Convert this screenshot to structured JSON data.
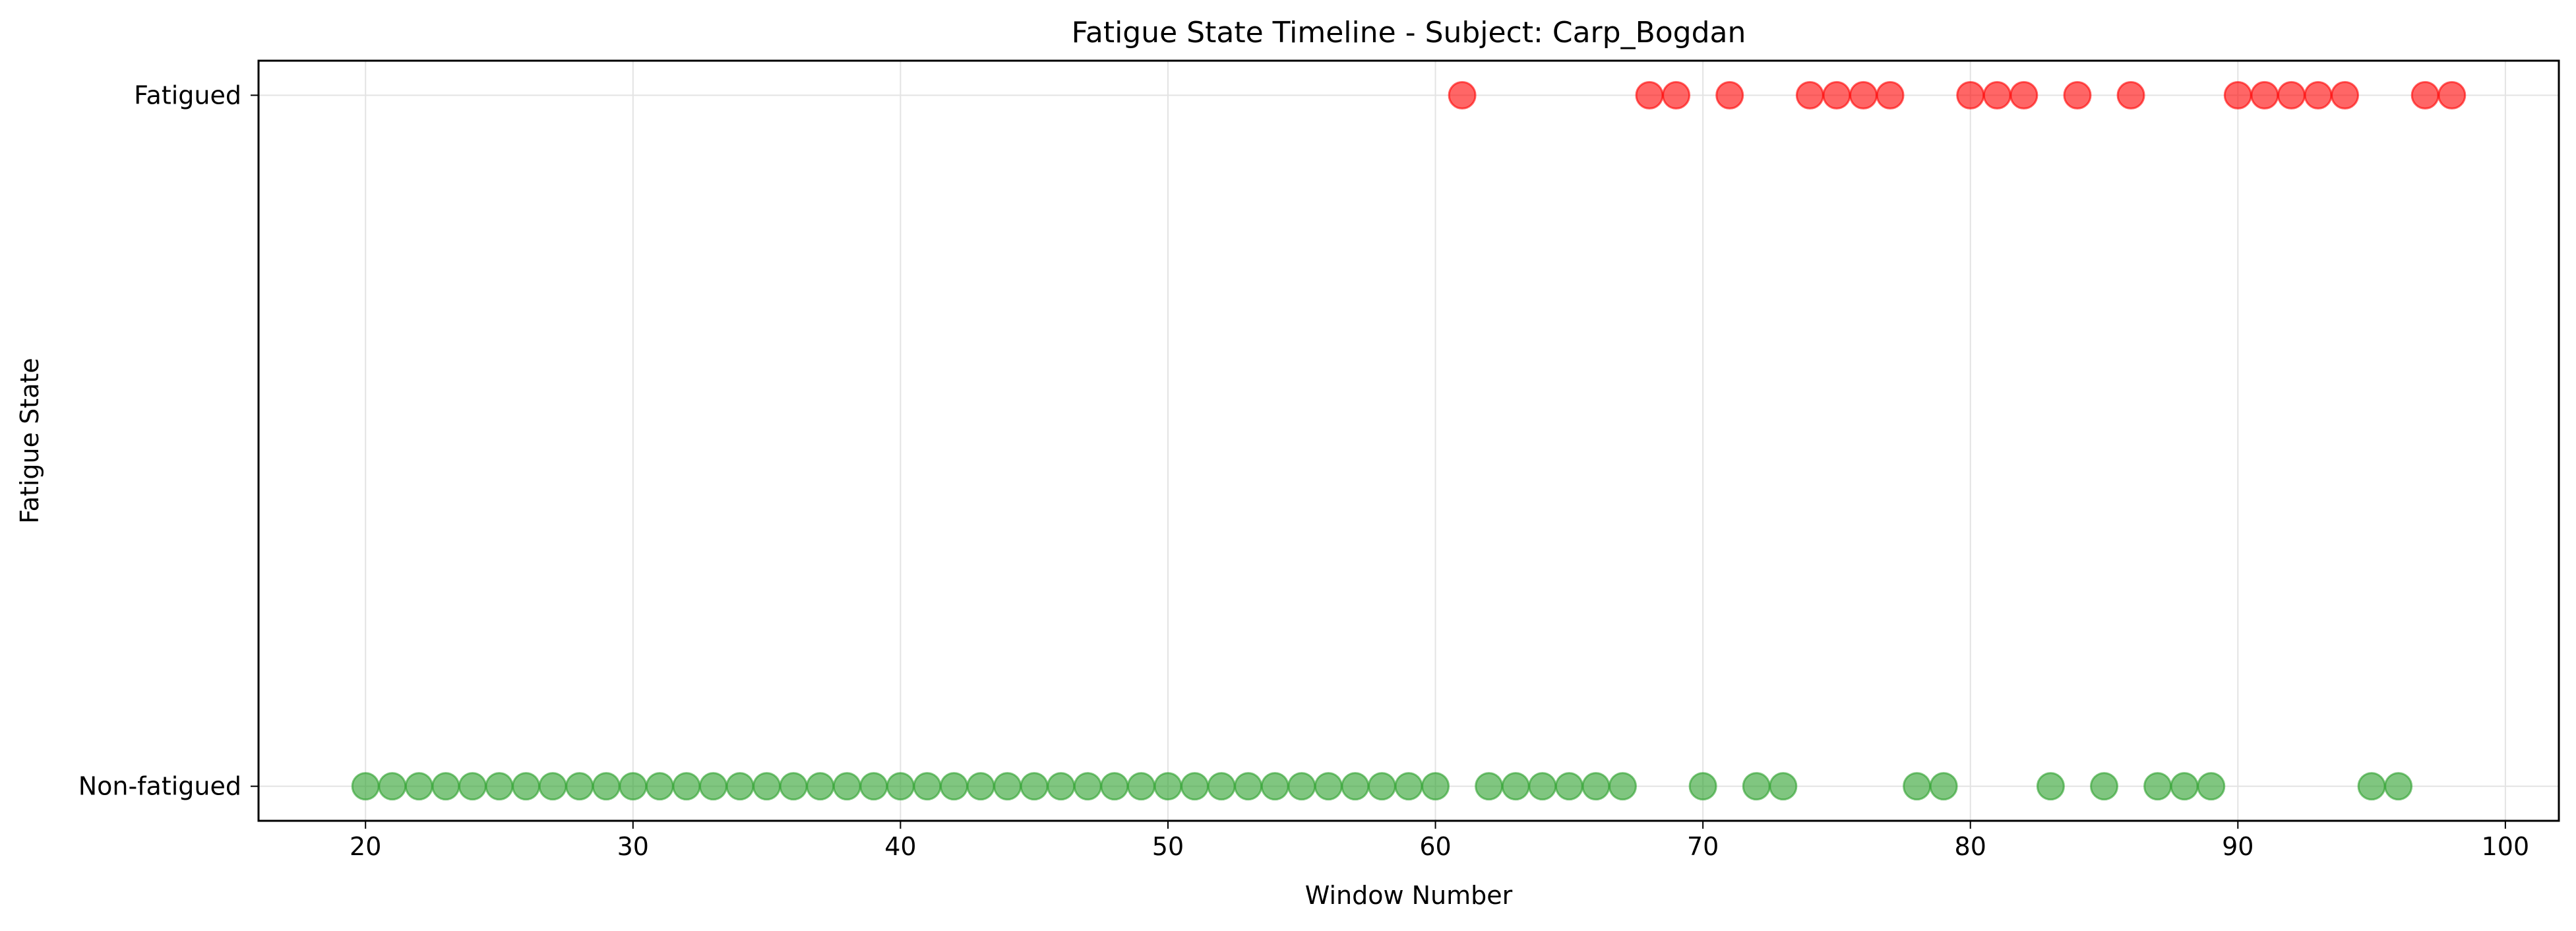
{
  "chart_data": {
    "type": "scatter",
    "title": "Fatigue State Timeline - Subject: Carp_Bogdan",
    "xlabel": "Window Number",
    "ylabel": "Fatigue State",
    "xlim": [
      16,
      102
    ],
    "ylim": [
      -0.05,
      1.05
    ],
    "xticks": [
      20,
      30,
      40,
      50,
      60,
      70,
      80,
      90,
      100
    ],
    "yticks": [
      {
        "value": 0,
        "label": "Non-fatigued"
      },
      {
        "value": 1,
        "label": "Fatigued"
      }
    ],
    "grid": true,
    "legend": "none",
    "series": [
      {
        "state": 0,
        "color": "#2ca02c",
        "x": [
          20,
          21,
          22,
          23,
          24,
          25,
          26,
          27,
          28,
          29,
          30,
          31,
          32,
          33,
          34,
          35,
          36,
          37,
          38,
          39,
          40,
          41,
          42,
          43,
          44,
          45,
          46,
          47,
          48,
          49,
          50,
          51,
          52,
          53,
          54,
          55,
          56,
          57,
          58,
          59,
          60,
          62,
          63,
          64,
          65,
          66,
          67,
          70,
          72,
          73,
          78,
          79,
          83,
          85,
          87,
          88,
          89,
          95,
          96
        ]
      },
      {
        "state": 1,
        "color": "#ff0000",
        "x": [
          61,
          68,
          69,
          71,
          74,
          75,
          76,
          77,
          80,
          81,
          82,
          84,
          86,
          90,
          91,
          92,
          93,
          94,
          97,
          98
        ]
      }
    ]
  }
}
